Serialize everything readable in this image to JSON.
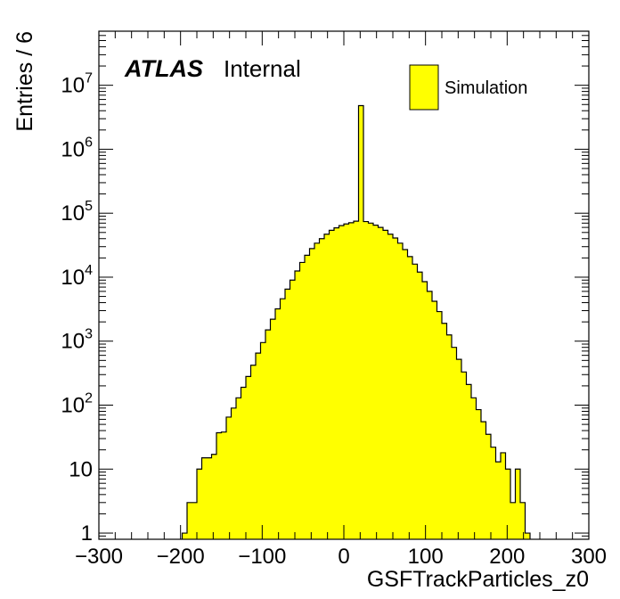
{
  "chart_data": {
    "type": "bar",
    "xlabel": "GSFTrackParticles_z0",
    "ylabel": "Entries / 6",
    "xlim": [
      -300,
      300
    ],
    "ylim_log": [
      0.8,
      70000000
    ],
    "y_scale": "log",
    "x_ticks": [
      "−300",
      "−200",
      "−100",
      "0",
      "100",
      "200",
      "300"
    ],
    "x_tick_values": [
      -300,
      -200,
      -100,
      0,
      100,
      200,
      300
    ],
    "y_ticks": [
      {
        "value": 1,
        "base": "1",
        "exp": ""
      },
      {
        "value": 10,
        "base": "10",
        "exp": ""
      },
      {
        "value": 100,
        "base": "10",
        "exp": "2"
      },
      {
        "value": 1000,
        "base": "10",
        "exp": "3"
      },
      {
        "value": 10000,
        "base": "10",
        "exp": "4"
      },
      {
        "value": 100000,
        "base": "10",
        "exp": "5"
      },
      {
        "value": 1000000,
        "base": "10",
        "exp": "6"
      },
      {
        "value": 10000000,
        "base": "10",
        "exp": "7"
      }
    ],
    "bin_edges_start": -198,
    "bin_width": 6,
    "values": [
      1,
      3,
      3,
      10,
      15,
      15,
      17,
      37,
      38,
      65,
      90,
      130,
      190,
      280,
      420,
      650,
      950,
      1500,
      2200,
      3200,
      4600,
      6500,
      9000,
      12500,
      17000,
      22000,
      28000,
      34000,
      40000,
      47000,
      54000,
      59000,
      64000,
      68000,
      71000,
      75000,
      4800000,
      74000,
      70000,
      65000,
      60000,
      54000,
      47000,
      41000,
      34000,
      27000,
      21000,
      16000,
      12000,
      8500,
      6000,
      4200,
      2900,
      1900,
      1250,
      800,
      520,
      330,
      210,
      130,
      85,
      55,
      35,
      22,
      13,
      18,
      10,
      3,
      10,
      3,
      1
    ],
    "series": [
      {
        "name": "Simulation",
        "color": "#ffff00"
      }
    ],
    "legend_position": "top-right",
    "annotation": {
      "experiment": "ATLAS",
      "status": "Internal"
    },
    "grid": false
  }
}
